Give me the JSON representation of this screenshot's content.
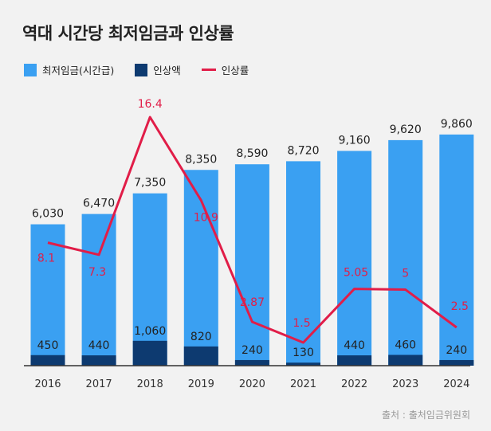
{
  "title": "역대 시간당 최저임금과 인상률",
  "legend": {
    "wage": "최저임금(시간급)",
    "increase": "인상액",
    "rate": "인상률"
  },
  "source": "출처 : 출처임금위원회",
  "colors": {
    "wage": "#3aa0f2",
    "increase": "#0d3a70",
    "rate": "#e11d48",
    "axis": "#333333"
  },
  "chart_data": {
    "type": "bar",
    "categories": [
      "2016",
      "2017",
      "2018",
      "2019",
      "2020",
      "2021",
      "2022",
      "2023",
      "2024"
    ],
    "series": [
      {
        "name": "최저임금(시간급)",
        "values": [
          6030,
          6470,
          7350,
          8350,
          8590,
          8720,
          9160,
          9620,
          9860
        ]
      },
      {
        "name": "인상액",
        "values": [
          450,
          440,
          1060,
          820,
          240,
          130,
          440,
          460,
          240
        ]
      },
      {
        "name": "인상률",
        "type": "line",
        "values": [
          8.1,
          7.3,
          16.4,
          10.9,
          2.87,
          1.5,
          5.05,
          5,
          2.5
        ]
      }
    ],
    "wage_labels": [
      "6,030",
      "6,470",
      "7,350",
      "8,350",
      "8,590",
      "8,720",
      "9,160",
      "9,620",
      "9,860"
    ],
    "increase_labels": [
      "450",
      "440",
      "1,060",
      "820",
      "240",
      "130",
      "440",
      "460",
      "240"
    ],
    "rate_labels": [
      "8.1",
      "7.3",
      "16.4",
      "10.9",
      "2.87",
      "1.5",
      "5.05",
      "5",
      "2.5"
    ],
    "ylim": [
      0,
      10500
    ],
    "rate_ylim": [
      0,
      18
    ],
    "grid": false,
    "legend_position": "top-left"
  }
}
